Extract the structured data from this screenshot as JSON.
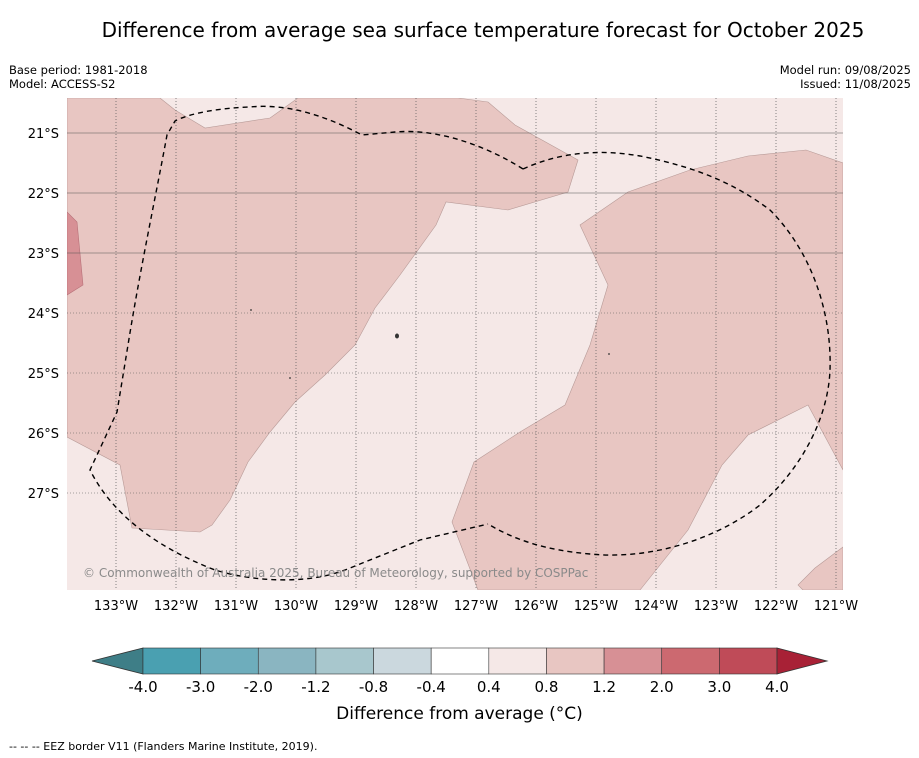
{
  "title": "Difference from average sea surface temperature forecast for October 2025",
  "base_period": "Base period: 1981-2018",
  "model": "Model: ACCESS-S2",
  "model_run": "Model run: 09/08/2025",
  "issued": "Issued: 11/08/2025",
  "copyright": "© Commonwealth of Australia 2025, Bureau of Meteorology, supported by COSPPac",
  "lat_labels": [
    "21°S",
    "22°S",
    "23°S",
    "24°S",
    "25°S",
    "26°S",
    "27°S"
  ],
  "lon_labels": [
    "133°W",
    "132°W",
    "131°W",
    "130°W",
    "129°W",
    "128°W",
    "127°W",
    "126°W",
    "125°W",
    "124°W",
    "123°W",
    "122°W",
    "121°W"
  ],
  "colorbar": {
    "ticks": [
      "-4.0",
      "-3.0",
      "-2.0",
      "-1.2",
      "-0.8",
      "-0.4",
      "0.4",
      "0.8",
      "1.2",
      "2.0",
      "3.0",
      "4.0"
    ],
    "colors": [
      "#3e7e87",
      "#4aa0b1",
      "#6eadbc",
      "#8ab5c1",
      "#a8c7cd",
      "#cbd8de",
      "#ffffff",
      "#f5e8e7",
      "#e8c6c2",
      "#d79095",
      "#cc6970",
      "#bf4b58",
      "#a82136"
    ],
    "label": "Difference from average (°C)"
  },
  "footnote": "--  --  -- EEZ border V11 (Flanders Marine Institute, 2019)."
}
